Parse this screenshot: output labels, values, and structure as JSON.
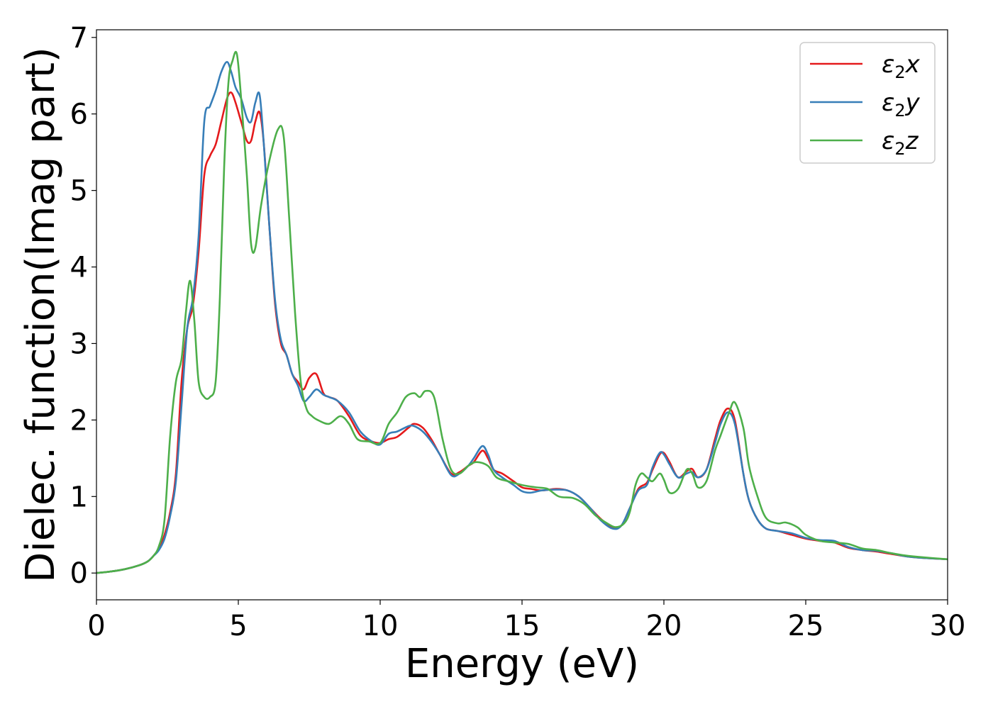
{
  "chart_data": {
    "type": "line",
    "title": "",
    "xlabel": "Energy (eV)",
    "ylabel": "Dielec. function(Imag part)",
    "xlim": [
      0,
      30
    ],
    "ylim": [
      -0.35,
      7.1
    ],
    "xticks": [
      0,
      5,
      10,
      15,
      20,
      25,
      30
    ],
    "yticks": [
      0,
      1,
      2,
      3,
      4,
      5,
      6,
      7
    ],
    "grid": false,
    "legend_position": "top-right",
    "series": [
      {
        "name": "ε₂x",
        "legend": {
          "base": "ε",
          "sub": "2",
          "tail": "x"
        },
        "color": "#e41a1c",
        "x": [
          0,
          0.5,
          1,
          1.5,
          1.8,
          2,
          2.2,
          2.4,
          2.6,
          2.8,
          3,
          3.2,
          3.4,
          3.6,
          3.8,
          4,
          4.2,
          4.4,
          4.6,
          4.75,
          4.9,
          5.1,
          5.3,
          5.45,
          5.6,
          5.75,
          5.9,
          6.1,
          6.3,
          6.5,
          6.7,
          6.9,
          7.1,
          7.3,
          7.5,
          7.75,
          8,
          8.2,
          8.5,
          8.9,
          9.3,
          9.7,
          10,
          10.3,
          10.6,
          11,
          11.2,
          11.5,
          11.8,
          12.1,
          12.5,
          12.8,
          13.1,
          13.3,
          13.6,
          13.8,
          14,
          14.3,
          14.7,
          15,
          15.3,
          15.7,
          16.2,
          16.6,
          17,
          17.4,
          17.8,
          18.2,
          18.5,
          18.8,
          19.1,
          19.4,
          19.6,
          19.85,
          20,
          20.2,
          20.5,
          20.8,
          21,
          21.2,
          21.5,
          21.8,
          22,
          22.25,
          22.5,
          22.8,
          23,
          23.3,
          23.6,
          24,
          24.5,
          25,
          25.5,
          26,
          26.5,
          27,
          27.5,
          28,
          28.5,
          29,
          30
        ],
        "y": [
          0,
          0.02,
          0.05,
          0.1,
          0.15,
          0.22,
          0.32,
          0.5,
          0.8,
          1.3,
          2.5,
          3.2,
          3.5,
          4.2,
          5.2,
          5.45,
          5.6,
          5.9,
          6.2,
          6.28,
          6.15,
          5.9,
          5.65,
          5.65,
          5.9,
          6.02,
          5.6,
          4.5,
          3.5,
          3.0,
          2.85,
          2.6,
          2.5,
          2.4,
          2.55,
          2.6,
          2.35,
          2.3,
          2.25,
          2.05,
          1.8,
          1.72,
          1.7,
          1.75,
          1.78,
          1.9,
          1.95,
          1.9,
          1.75,
          1.55,
          1.3,
          1.32,
          1.4,
          1.45,
          1.6,
          1.5,
          1.35,
          1.3,
          1.2,
          1.12,
          1.1,
          1.08,
          1.1,
          1.08,
          1.0,
          0.85,
          0.7,
          0.6,
          0.62,
          0.85,
          1.1,
          1.18,
          1.35,
          1.55,
          1.57,
          1.45,
          1.25,
          1.33,
          1.36,
          1.25,
          1.35,
          1.75,
          2.0,
          2.15,
          2.0,
          1.3,
          0.95,
          0.7,
          0.58,
          0.55,
          0.5,
          0.45,
          0.42,
          0.4,
          0.33,
          0.3,
          0.28,
          0.25,
          0.22,
          0.2,
          0.18
        ]
      },
      {
        "name": "ε₂y",
        "legend": {
          "base": "ε",
          "sub": "2",
          "tail": "y"
        },
        "color": "#377eb8",
        "x": [
          0,
          0.5,
          1,
          1.5,
          1.8,
          2,
          2.2,
          2.4,
          2.6,
          2.8,
          3,
          3.2,
          3.4,
          3.6,
          3.8,
          4,
          4.2,
          4.4,
          4.6,
          4.75,
          4.9,
          5.1,
          5.3,
          5.45,
          5.6,
          5.75,
          5.9,
          6.1,
          6.3,
          6.5,
          6.7,
          6.9,
          7.1,
          7.3,
          7.5,
          7.75,
          8,
          8.2,
          8.5,
          8.9,
          9.3,
          9.7,
          10,
          10.3,
          10.6,
          11,
          11.2,
          11.5,
          11.8,
          12.1,
          12.5,
          12.8,
          13.1,
          13.3,
          13.6,
          13.8,
          14,
          14.3,
          14.7,
          15,
          15.3,
          15.7,
          16.2,
          16.6,
          17,
          17.4,
          17.8,
          18.2,
          18.5,
          18.8,
          19.1,
          19.4,
          19.6,
          19.85,
          20,
          20.2,
          20.5,
          20.8,
          21,
          21.2,
          21.5,
          21.8,
          22,
          22.25,
          22.5,
          22.8,
          23,
          23.3,
          23.6,
          24,
          24.5,
          25,
          25.5,
          26,
          26.5,
          27,
          27.5,
          28,
          28.5,
          29,
          30
        ],
        "y": [
          0,
          0.02,
          0.05,
          0.1,
          0.15,
          0.22,
          0.3,
          0.45,
          0.75,
          1.2,
          2.2,
          3.2,
          3.6,
          4.4,
          5.9,
          6.1,
          6.3,
          6.55,
          6.68,
          6.55,
          6.35,
          6.2,
          5.95,
          5.9,
          6.15,
          6.25,
          5.6,
          4.5,
          3.55,
          3.05,
          2.85,
          2.6,
          2.45,
          2.25,
          2.3,
          2.4,
          2.33,
          2.3,
          2.25,
          2.1,
          1.85,
          1.72,
          1.68,
          1.82,
          1.85,
          1.92,
          1.92,
          1.85,
          1.72,
          1.55,
          1.28,
          1.3,
          1.4,
          1.5,
          1.66,
          1.55,
          1.35,
          1.25,
          1.15,
          1.07,
          1.05,
          1.08,
          1.09,
          1.08,
          1.0,
          0.85,
          0.68,
          0.58,
          0.62,
          0.85,
          1.08,
          1.15,
          1.38,
          1.57,
          1.55,
          1.42,
          1.25,
          1.3,
          1.32,
          1.25,
          1.35,
          1.7,
          1.95,
          2.1,
          1.95,
          1.3,
          0.95,
          0.7,
          0.58,
          0.55,
          0.52,
          0.46,
          0.43,
          0.42,
          0.34,
          0.3,
          0.29,
          0.26,
          0.22,
          0.2,
          0.18
        ]
      },
      {
        "name": "ε₂z",
        "legend": {
          "base": "ε",
          "sub": "2",
          "tail": "z"
        },
        "color": "#4daf4a",
        "x": [
          0,
          0.5,
          1,
          1.5,
          1.8,
          2,
          2.2,
          2.4,
          2.6,
          2.8,
          3,
          3.15,
          3.3,
          3.45,
          3.6,
          3.8,
          4,
          4.2,
          4.35,
          4.5,
          4.65,
          4.8,
          4.95,
          5.1,
          5.3,
          5.45,
          5.6,
          5.8,
          6.1,
          6.4,
          6.6,
          6.8,
          7,
          7.2,
          7.4,
          7.6,
          7.8,
          8.2,
          8.6,
          8.9,
          9.2,
          9.6,
          10,
          10.3,
          10.6,
          10.9,
          11.2,
          11.4,
          11.6,
          11.9,
          12.2,
          12.5,
          12.8,
          13.1,
          13.4,
          13.8,
          14.1,
          14.5,
          15,
          15.5,
          15.9,
          16.3,
          16.8,
          17.2,
          17.6,
          18,
          18.3,
          18.6,
          18.8,
          19,
          19.2,
          19.4,
          19.6,
          19.85,
          20,
          20.2,
          20.5,
          20.8,
          21,
          21.2,
          21.5,
          21.8,
          22,
          22.3,
          22.5,
          22.8,
          23,
          23.3,
          23.6,
          24,
          24.3,
          24.7,
          25,
          25.5,
          26,
          26.5,
          27,
          27.5,
          28,
          28.5,
          29,
          30
        ],
        "y": [
          0,
          0.02,
          0.05,
          0.1,
          0.15,
          0.22,
          0.35,
          0.7,
          1.8,
          2.5,
          2.8,
          3.4,
          3.82,
          3.3,
          2.5,
          2.3,
          2.3,
          2.5,
          3.6,
          5.3,
          6.4,
          6.7,
          6.78,
          6.2,
          5.2,
          4.3,
          4.25,
          4.8,
          5.4,
          5.8,
          5.7,
          4.6,
          3.4,
          2.5,
          2.15,
          2.05,
          2.0,
          1.95,
          2.05,
          1.95,
          1.75,
          1.72,
          1.7,
          1.95,
          2.1,
          2.3,
          2.35,
          2.3,
          2.38,
          2.3,
          1.75,
          1.35,
          1.3,
          1.4,
          1.45,
          1.4,
          1.25,
          1.2,
          1.15,
          1.12,
          1.1,
          1.0,
          0.98,
          0.9,
          0.75,
          0.65,
          0.6,
          0.65,
          0.8,
          1.15,
          1.3,
          1.25,
          1.2,
          1.3,
          1.22,
          1.05,
          1.1,
          1.35,
          1.3,
          1.12,
          1.2,
          1.6,
          1.8,
          2.1,
          2.23,
          1.9,
          1.4,
          1.0,
          0.72,
          0.65,
          0.66,
          0.6,
          0.5,
          0.42,
          0.4,
          0.38,
          0.32,
          0.3,
          0.26,
          0.23,
          0.21,
          0.18
        ]
      }
    ]
  }
}
